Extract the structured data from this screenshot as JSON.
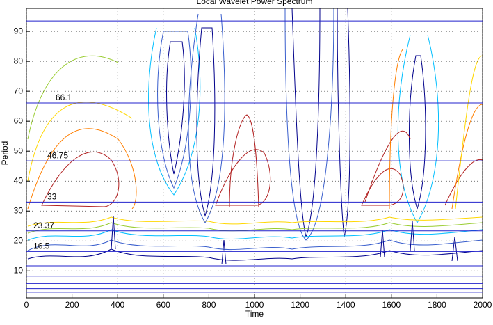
{
  "chart_data": {
    "type": "contour",
    "title": "Local Wavelet Power Spectrum",
    "xlabel": "Time",
    "ylabel": "Period",
    "xlim": [
      0,
      2000
    ],
    "ylim": [
      1,
      97.7
    ],
    "xticks": [
      0,
      200,
      400,
      600,
      800,
      1000,
      1200,
      1400,
      1600,
      1800,
      2000
    ],
    "yticks": [
      10,
      20,
      30,
      40,
      50,
      60,
      70,
      80,
      90
    ],
    "grid": true,
    "hlines": [
      93.5,
      66.1,
      46.75,
      33,
      23.37,
      16.5,
      11.7,
      8.25,
      5.8,
      4.1,
      2.9
    ],
    "hline_labels": [
      null,
      "66.1",
      "46.75",
      "33",
      "23.37",
      "16.5",
      null,
      null,
      null,
      null,
      null
    ],
    "hline_color": "#2222cc"
  }
}
